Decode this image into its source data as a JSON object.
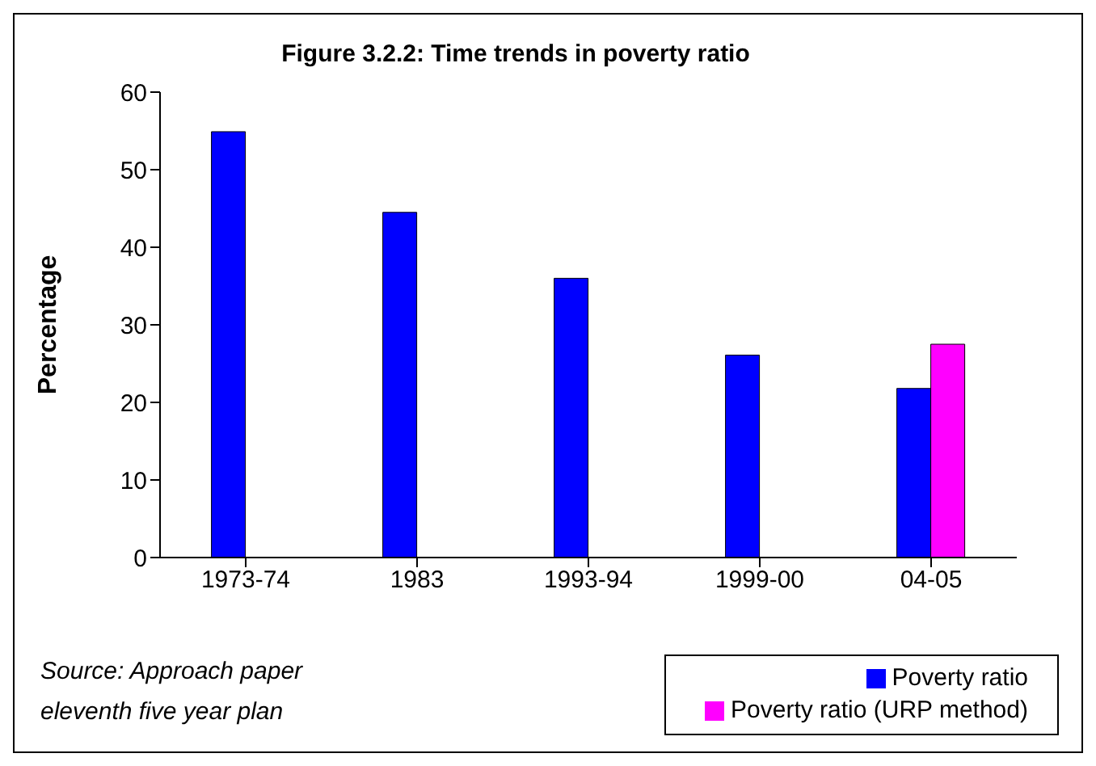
{
  "chart_data": {
    "type": "bar",
    "title": "Figure 3.2.2: Time trends in poverty ratio",
    "ylabel": "Percentage",
    "categories": [
      "1973-74",
      "1983",
      "1993-94",
      "1999-00",
      "04-05"
    ],
    "series": [
      {
        "name": "Poverty ratio",
        "color": "#0000ff",
        "values": [
          54.9,
          44.5,
          36.0,
          26.1,
          21.8
        ]
      },
      {
        "name": "Poverty ratio (URP method)",
        "color": "#ff00ff",
        "values": [
          null,
          null,
          null,
          null,
          27.5
        ]
      }
    ],
    "ylim": [
      0,
      60
    ],
    "yticks": [
      0,
      10,
      20,
      30,
      40,
      50,
      60
    ],
    "grid": false,
    "legend": "bottom right",
    "annotations": [
      "Source: Approach paper eleventh five year plan"
    ]
  }
}
